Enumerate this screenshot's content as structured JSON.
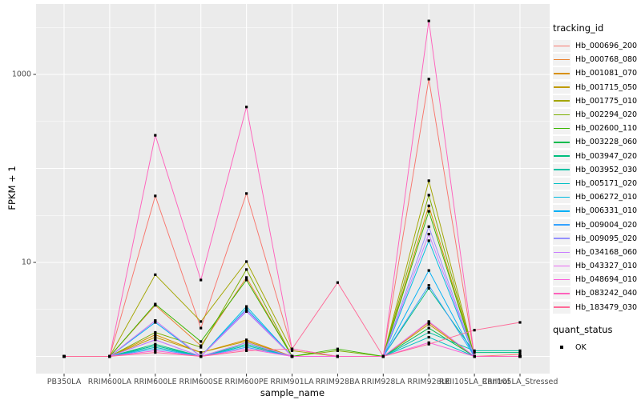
{
  "chart_data": {
    "type": "line",
    "title": "",
    "xlabel": "sample_name",
    "ylabel": "FPKM + 1",
    "y_scale": "log10",
    "ylim": [
      0.66,
      5600
    ],
    "y_ticks": [
      {
        "label": "1000",
        "value": 1000
      },
      {
        "label": "10",
        "value": 10
      }
    ],
    "grid": {
      "on": true,
      "major_values": [
        1,
        10,
        100,
        1000
      ],
      "minor_values": [
        3.162,
        31.62,
        316.2,
        3162
      ]
    },
    "legend_title": "tracking_id",
    "legend_position": "right",
    "quant_legend": {
      "title": "quant_status",
      "items": [
        "OK"
      ]
    },
    "marker": {
      "shape": "square",
      "color": "#000000"
    },
    "panel_color": "#ebebeb",
    "gridline_color": "#ffffff",
    "categories": [
      "PB350LA",
      "RRIM600LA",
      "RRIM600LE",
      "RRIM600SE",
      "RRIM600PE",
      "RRIM901LA",
      "RRIM928BA",
      "RRIM928LA",
      "RRIM928LE",
      "RRII105LA_Control",
      "RRII105LA_Stressed"
    ],
    "series": [
      {
        "name": "Hb_000696_200",
        "color": "#F8766D",
        "values": [
          1,
          1,
          51,
          2.0,
          54,
          1.2,
          1,
          1,
          890,
          1,
          1.05
        ]
      },
      {
        "name": "Hb_000768_080",
        "color": "#EA8331",
        "values": [
          1,
          1,
          3.5,
          1.3,
          6.9,
          1,
          1,
          1,
          2.3,
          1,
          1
        ]
      },
      {
        "name": "Hb_001081_070",
        "color": "#D89000",
        "values": [
          1,
          1,
          1.7,
          1.1,
          1.5,
          1,
          1,
          1,
          40,
          1,
          1
        ]
      },
      {
        "name": "Hb_001715_050",
        "color": "#C09B00",
        "values": [
          1,
          1,
          1.6,
          1.1,
          1.45,
          1,
          1,
          1,
          2.2,
          1,
          1
        ]
      },
      {
        "name": "Hb_001775_010",
        "color": "#A3A500",
        "values": [
          1,
          1,
          7.4,
          2.35,
          10.2,
          1.15,
          1,
          1,
          74,
          1,
          1
        ]
      },
      {
        "name": "Hb_002294_020",
        "color": "#7CAE00",
        "values": [
          1,
          1,
          1.8,
          1.25,
          8.4,
          1,
          1.15,
          1,
          52,
          1,
          1
        ]
      },
      {
        "name": "Hb_002600_110",
        "color": "#39B600",
        "values": [
          1,
          1,
          3.6,
          1.44,
          6.5,
          1,
          1.2,
          1,
          35,
          1,
          1
        ]
      },
      {
        "name": "Hb_003228_060",
        "color": "#00BB4E",
        "values": [
          1,
          1,
          1.3,
          1,
          1.3,
          1,
          1,
          1,
          2.0,
          1,
          1
        ]
      },
      {
        "name": "Hb_003947_020",
        "color": "#00BF7D",
        "values": [
          1,
          1,
          1.35,
          1,
          1.4,
          1,
          1,
          1,
          5.3,
          1.1,
          1.1
        ]
      },
      {
        "name": "Hb_003952_030",
        "color": "#00C1A3",
        "values": [
          1,
          1,
          1.3,
          1,
          1.35,
          1,
          1,
          1,
          1.8,
          1.15,
          1.15
        ]
      },
      {
        "name": "Hb_005171_020",
        "color": "#00BFC4",
        "values": [
          1,
          1,
          1.25,
          1,
          1.3,
          1,
          1,
          1,
          1.6,
          1,
          1
        ]
      },
      {
        "name": "Hb_006272_010",
        "color": "#00BAE0",
        "values": [
          1,
          1,
          2.4,
          1,
          3.4,
          1,
          1,
          1,
          17,
          1,
          1
        ]
      },
      {
        "name": "Hb_006331_010",
        "color": "#00B0F6",
        "values": [
          1,
          1,
          2.3,
          1,
          3.2,
          1,
          1,
          1,
          8.2,
          1,
          1
        ]
      },
      {
        "name": "Hb_009004_020",
        "color": "#35A2FF",
        "values": [
          1,
          1,
          1.2,
          1,
          1.25,
          1,
          1,
          1,
          5.7,
          1,
          1
        ]
      },
      {
        "name": "Hb_009095_020",
        "color": "#9590FF",
        "values": [
          1,
          1,
          1.5,
          1,
          3.0,
          1,
          1,
          1,
          24,
          1,
          1
        ]
      },
      {
        "name": "Hb_034168_060",
        "color": "#C77CFF",
        "values": [
          1,
          1,
          1.5,
          1,
          1.4,
          1,
          1,
          1,
          20,
          1,
          1
        ]
      },
      {
        "name": "Hb_043327_010",
        "color": "#E76BF3",
        "values": [
          1,
          1,
          2.4,
          1,
          3.1,
          1,
          1,
          1,
          2.35,
          1,
          1
        ]
      },
      {
        "name": "Hb_048694_010",
        "color": "#FA62DB",
        "values": [
          1,
          1,
          1.15,
          1,
          1.2,
          1,
          1,
          1,
          1.4,
          1,
          1
        ]
      },
      {
        "name": "Hb_083242_040",
        "color": "#FF62BC",
        "values": [
          1,
          1,
          225,
          6.5,
          450,
          1.2,
          1,
          1,
          3700,
          1,
          1
        ]
      },
      {
        "name": "Hb_183479_030",
        "color": "#FF6A98",
        "values": [
          1,
          1,
          1.1,
          1,
          1.15,
          1.2,
          6.1,
          1,
          1.35,
          1.9,
          2.3
        ]
      }
    ]
  }
}
